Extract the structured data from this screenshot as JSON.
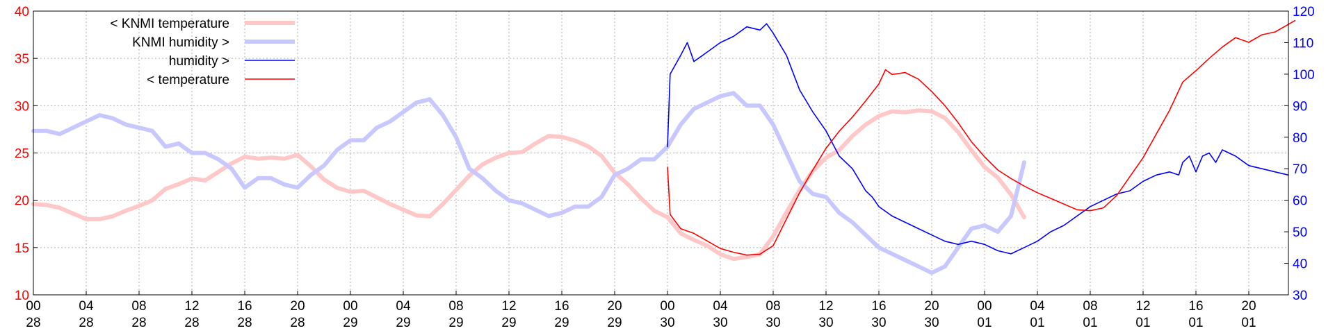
{
  "chart_data": {
    "type": "line",
    "title": "",
    "y_left": {
      "min": 10,
      "max": 40,
      "ticks": [
        10,
        15,
        20,
        25,
        30,
        35,
        40
      ],
      "color": "#ff0000"
    },
    "y_right": {
      "min": 30,
      "max": 120,
      "ticks": [
        30,
        40,
        50,
        60,
        70,
        80,
        90,
        100,
        110,
        120
      ],
      "color": "#0000ff"
    },
    "x_axis": {
      "unit": "hours since 28 00:00",
      "min": 0,
      "max": 95,
      "ticks": [
        {
          "x": 0,
          "hour": "00",
          "day": "28"
        },
        {
          "x": 4,
          "hour": "04",
          "day": "28"
        },
        {
          "x": 8,
          "hour": "08",
          "day": "28"
        },
        {
          "x": 12,
          "hour": "12",
          "day": "28"
        },
        {
          "x": 16,
          "hour": "16",
          "day": "28"
        },
        {
          "x": 20,
          "hour": "20",
          "day": "28"
        },
        {
          "x": 24,
          "hour": "00",
          "day": "29"
        },
        {
          "x": 28,
          "hour": "04",
          "day": "29"
        },
        {
          "x": 32,
          "hour": "08",
          "day": "29"
        },
        {
          "x": 36,
          "hour": "12",
          "day": "29"
        },
        {
          "x": 40,
          "hour": "16",
          "day": "29"
        },
        {
          "x": 44,
          "hour": "20",
          "day": "29"
        },
        {
          "x": 48,
          "hour": "00",
          "day": "30"
        },
        {
          "x": 52,
          "hour": "04",
          "day": "30"
        },
        {
          "x": 56,
          "hour": "08",
          "day": "30"
        },
        {
          "x": 60,
          "hour": "12",
          "day": "30"
        },
        {
          "x": 64,
          "hour": "16",
          "day": "30"
        },
        {
          "x": 68,
          "hour": "20",
          "day": "30"
        },
        {
          "x": 72,
          "hour": "00",
          "day": "01"
        },
        {
          "x": 76,
          "hour": "04",
          "day": "01"
        },
        {
          "x": 80,
          "hour": "08",
          "day": "01"
        },
        {
          "x": 84,
          "hour": "12",
          "day": "01"
        },
        {
          "x": 88,
          "hour": "16",
          "day": "01"
        },
        {
          "x": 92,
          "hour": "20",
          "day": "01"
        }
      ]
    },
    "grid": true,
    "legend_position": "top-left",
    "series": [
      {
        "name": "< KNMI temperature",
        "axis": "left",
        "color": "#ffc8c8",
        "width": 6,
        "points": [
          [
            0,
            19.6
          ],
          [
            1,
            19.5
          ],
          [
            2,
            19.2
          ],
          [
            3,
            18.6
          ],
          [
            4,
            18.0
          ],
          [
            5,
            18.0
          ],
          [
            6,
            18.3
          ],
          [
            7,
            18.9
          ],
          [
            8,
            19.4
          ],
          [
            9,
            20.0
          ],
          [
            10,
            21.2
          ],
          [
            11,
            21.7
          ],
          [
            12,
            22.3
          ],
          [
            13,
            22.1
          ],
          [
            14,
            23.0
          ],
          [
            15,
            23.9
          ],
          [
            16,
            24.6
          ],
          [
            17,
            24.4
          ],
          [
            18,
            24.5
          ],
          [
            19,
            24.4
          ],
          [
            20,
            24.8
          ],
          [
            21,
            23.6
          ],
          [
            22,
            22.2
          ],
          [
            23,
            21.3
          ],
          [
            24,
            20.9
          ],
          [
            25,
            21.0
          ],
          [
            26,
            20.3
          ],
          [
            27,
            19.6
          ],
          [
            28,
            19.0
          ],
          [
            29,
            18.4
          ],
          [
            30,
            18.3
          ],
          [
            31,
            19.6
          ],
          [
            32,
            21.1
          ],
          [
            33,
            22.6
          ],
          [
            34,
            23.8
          ],
          [
            35,
            24.5
          ],
          [
            36,
            25.0
          ],
          [
            37,
            25.1
          ],
          [
            38,
            26.0
          ],
          [
            39,
            26.8
          ],
          [
            40,
            26.7
          ],
          [
            41,
            26.3
          ],
          [
            42,
            25.7
          ],
          [
            43,
            24.7
          ],
          [
            44,
            22.9
          ],
          [
            45,
            21.7
          ],
          [
            46,
            20.2
          ],
          [
            47,
            18.9
          ],
          [
            48,
            18.2
          ],
          [
            49,
            16.5
          ],
          [
            50,
            15.8
          ],
          [
            51,
            15.2
          ],
          [
            52,
            14.3
          ],
          [
            53,
            13.8
          ],
          [
            54,
            14.0
          ],
          [
            55,
            14.3
          ],
          [
            56,
            16.2
          ],
          [
            57,
            18.7
          ],
          [
            58,
            21.1
          ],
          [
            59,
            23.1
          ],
          [
            60,
            24.5
          ],
          [
            61,
            25.3
          ],
          [
            62,
            26.8
          ],
          [
            63,
            28.0
          ],
          [
            64,
            28.9
          ],
          [
            65,
            29.4
          ],
          [
            66,
            29.3
          ],
          [
            67,
            29.5
          ],
          [
            68,
            29.4
          ],
          [
            69,
            28.7
          ],
          [
            70,
            27.2
          ],
          [
            71,
            25.3
          ],
          [
            72,
            23.5
          ],
          [
            73,
            22.4
          ],
          [
            74,
            20.6
          ],
          [
            75,
            18.2
          ]
        ]
      },
      {
        "name": "KNMI humidity >",
        "axis": "right",
        "color": "#c8c8ff",
        "width": 6,
        "points": [
          [
            0,
            82
          ],
          [
            1,
            82
          ],
          [
            2,
            81
          ],
          [
            3,
            83
          ],
          [
            4,
            85
          ],
          [
            5,
            87
          ],
          [
            6,
            86
          ],
          [
            7,
            84
          ],
          [
            8,
            83
          ],
          [
            9,
            82
          ],
          [
            10,
            77
          ],
          [
            11,
            78
          ],
          [
            12,
            75
          ],
          [
            13,
            75
          ],
          [
            14,
            73
          ],
          [
            15,
            70
          ],
          [
            16,
            64
          ],
          [
            17,
            67
          ],
          [
            18,
            67
          ],
          [
            19,
            65
          ],
          [
            20,
            64
          ],
          [
            21,
            68
          ],
          [
            22,
            71
          ],
          [
            23,
            76
          ],
          [
            24,
            79
          ],
          [
            25,
            79
          ],
          [
            26,
            83
          ],
          [
            27,
            85
          ],
          [
            28,
            88
          ],
          [
            29,
            91
          ],
          [
            30,
            92
          ],
          [
            31,
            87
          ],
          [
            32,
            80
          ],
          [
            33,
            70
          ],
          [
            34,
            67
          ],
          [
            35,
            63
          ],
          [
            36,
            60
          ],
          [
            37,
            59
          ],
          [
            38,
            57
          ],
          [
            39,
            55
          ],
          [
            40,
            56
          ],
          [
            41,
            58
          ],
          [
            42,
            58
          ],
          [
            43,
            61
          ],
          [
            44,
            68
          ],
          [
            45,
            70
          ],
          [
            46,
            73
          ],
          [
            47,
            73
          ],
          [
            48,
            77
          ],
          [
            49,
            84
          ],
          [
            50,
            89
          ],
          [
            51,
            91
          ],
          [
            52,
            93
          ],
          [
            53,
            94
          ],
          [
            54,
            90
          ],
          [
            55,
            90
          ],
          [
            56,
            84
          ],
          [
            57,
            75
          ],
          [
            58,
            66
          ],
          [
            59,
            62
          ],
          [
            60,
            61
          ],
          [
            61,
            56
          ],
          [
            62,
            53
          ],
          [
            63,
            49
          ],
          [
            64,
            45
          ],
          [
            65,
            43
          ],
          [
            66,
            41
          ],
          [
            67,
            39
          ],
          [
            68,
            37
          ],
          [
            69,
            39
          ],
          [
            70,
            45
          ],
          [
            71,
            51
          ],
          [
            72,
            52
          ],
          [
            73,
            50
          ],
          [
            74,
            55
          ],
          [
            75,
            72
          ]
        ]
      },
      {
        "name": "humidity >",
        "axis": "right",
        "color": "#0000ff",
        "width": 1.6,
        "points": [
          [
            48,
            77
          ],
          [
            48.2,
            100
          ],
          [
            49,
            106
          ],
          [
            49.5,
            110
          ],
          [
            50,
            104
          ],
          [
            51,
            107
          ],
          [
            52,
            110
          ],
          [
            53,
            112
          ],
          [
            54,
            115
          ],
          [
            55,
            114
          ],
          [
            55.5,
            116
          ],
          [
            56,
            113
          ],
          [
            57,
            106
          ],
          [
            58,
            95
          ],
          [
            59,
            88
          ],
          [
            60,
            82
          ],
          [
            61,
            74
          ],
          [
            62,
            70
          ],
          [
            63,
            63
          ],
          [
            63.5,
            61
          ],
          [
            64,
            58
          ],
          [
            65,
            55
          ],
          [
            66,
            53
          ],
          [
            67,
            51
          ],
          [
            68,
            49
          ],
          [
            69,
            47
          ],
          [
            70,
            46
          ],
          [
            71,
            47
          ],
          [
            72,
            46
          ],
          [
            73,
            44
          ],
          [
            74,
            43
          ],
          [
            75,
            45
          ],
          [
            76,
            47
          ],
          [
            77,
            50
          ],
          [
            78,
            52
          ],
          [
            79,
            55
          ],
          [
            80,
            58
          ],
          [
            81,
            60
          ],
          [
            82,
            62
          ],
          [
            83,
            63
          ],
          [
            84,
            66
          ],
          [
            85,
            68
          ],
          [
            86,
            69
          ],
          [
            86.7,
            68
          ],
          [
            87,
            72
          ],
          [
            87.5,
            74
          ],
          [
            88,
            69
          ],
          [
            88.5,
            74
          ],
          [
            89,
            75
          ],
          [
            89.5,
            72
          ],
          [
            90,
            76
          ],
          [
            91,
            74
          ],
          [
            92,
            71
          ],
          [
            93,
            70
          ],
          [
            94,
            69
          ],
          [
            95,
            68
          ]
        ]
      },
      {
        "name": "< temperature",
        "axis": "left",
        "color": "#ff0000",
        "width": 1.6,
        "points": [
          [
            48,
            23.5
          ],
          [
            48.2,
            18.5
          ],
          [
            49,
            17.0
          ],
          [
            50,
            16.5
          ],
          [
            51,
            15.7
          ],
          [
            52,
            14.9
          ],
          [
            53,
            14.5
          ],
          [
            54,
            14.2
          ],
          [
            55,
            14.3
          ],
          [
            56,
            15.2
          ],
          [
            57,
            18.0
          ],
          [
            58,
            20.8
          ],
          [
            59,
            23.2
          ],
          [
            60,
            25.5
          ],
          [
            61,
            27.3
          ],
          [
            62,
            28.8
          ],
          [
            63,
            30.5
          ],
          [
            64,
            32.3
          ],
          [
            64.5,
            33.8
          ],
          [
            65,
            33.3
          ],
          [
            66,
            33.5
          ],
          [
            67,
            32.8
          ],
          [
            68,
            31.5
          ],
          [
            69,
            30.0
          ],
          [
            70,
            28.2
          ],
          [
            71,
            26.2
          ],
          [
            72,
            24.6
          ],
          [
            73,
            23.2
          ],
          [
            74,
            22.3
          ],
          [
            75,
            21.5
          ],
          [
            76,
            20.8
          ],
          [
            77,
            20.2
          ],
          [
            78,
            19.6
          ],
          [
            79,
            19.0
          ],
          [
            80,
            18.9
          ],
          [
            81,
            19.2
          ],
          [
            82,
            20.5
          ],
          [
            83,
            22.5
          ],
          [
            84,
            24.5
          ],
          [
            85,
            27.0
          ],
          [
            86,
            29.5
          ],
          [
            87,
            32.5
          ],
          [
            88,
            33.7
          ],
          [
            89,
            35.0
          ],
          [
            90,
            36.2
          ],
          [
            91,
            37.2
          ],
          [
            92,
            36.7
          ],
          [
            93,
            37.5
          ],
          [
            94,
            37.8
          ],
          [
            95,
            38.6
          ],
          [
            95.5,
            39.0
          ]
        ]
      }
    ]
  },
  "legend": [
    {
      "label": "< KNMI temperature",
      "color": "#ffc8c8",
      "width": 6
    },
    {
      "label": "KNMI humidity >",
      "color": "#c8c8ff",
      "width": 6
    },
    {
      "label": "humidity >",
      "color": "#0000ff",
      "width": 1.6
    },
    {
      "label": "< temperature",
      "color": "#ff0000",
      "width": 1.6
    }
  ]
}
